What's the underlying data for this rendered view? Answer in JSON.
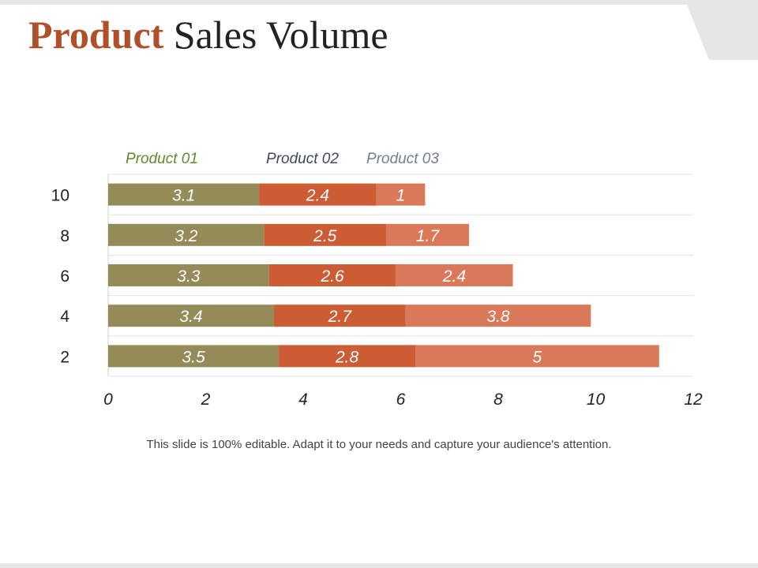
{
  "slide": {
    "title_accent": "Product",
    "title_rest": " Sales Volume",
    "footer_note": "This slide is 100% editable. Adapt it to your needs and capture your audience's attention."
  },
  "chart_data": {
    "type": "bar",
    "orientation": "horizontal",
    "stacked": true,
    "title": "Product Sales Volume",
    "xlabel": "",
    "ylabel": "",
    "categories": [
      "10",
      "8",
      "6",
      "4",
      "2"
    ],
    "series": [
      {
        "name": "Product 01",
        "color": "#958b58",
        "legend_color": "#5f8a2a",
        "values": [
          3.1,
          3.2,
          3.3,
          3.4,
          3.5
        ]
      },
      {
        "name": "Product 02",
        "color": "#cc5c34",
        "legend_color": "#3c4a5e",
        "values": [
          2.4,
          2.5,
          2.6,
          2.7,
          2.8
        ]
      },
      {
        "name": "Product 03",
        "color": "#d9795a",
        "legend_color": "#6f7f96",
        "values": [
          1,
          1.7,
          2.4,
          3.8,
          5
        ]
      }
    ],
    "xlim": [
      0,
      12
    ],
    "xticks": [
      0,
      2,
      4,
      6,
      8,
      10,
      12
    ],
    "grid": true,
    "legend_position": "top"
  }
}
